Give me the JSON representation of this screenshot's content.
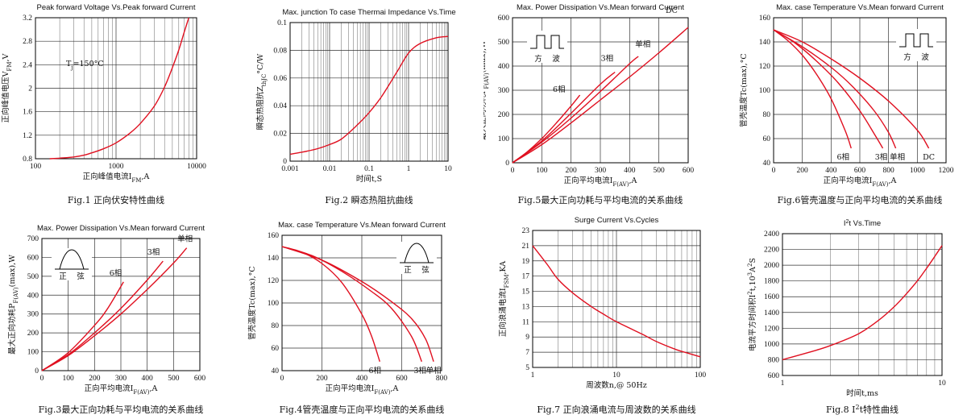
{
  "chart_data": [
    {
      "id": "fig1",
      "type": "line",
      "title": "Peak forward Voltage Vs.Peak forward Current",
      "xlabel": "正向峰值电流I",
      "xlabel_sub": "FM",
      "xlabel_end": ",A",
      "ylabel": "正向峰值电压V",
      "ylabel_sub": "FM",
      "ylabel_end": ",V",
      "caption": "Fig.1 正向伏安特性曲线",
      "annotation": "T",
      "annotation_sub": "j",
      "annotation_end": "=150°C",
      "xscale": "log",
      "xlim": [
        100,
        10000
      ],
      "ylim": [
        0.8,
        3.2
      ],
      "x_ticks": [
        100,
        1000,
        10000
      ],
      "x_tick_labels": [
        "100",
        "1000",
        "10000"
      ],
      "y_ticks": [
        0.8,
        1.2,
        1.6,
        2,
        2.4,
        2.8,
        3.2
      ],
      "y_tick_labels": [
        "0.8",
        "1.2",
        "1.6",
        "2",
        "2.4",
        "2.8",
        "3.2"
      ],
      "series": [
        {
          "x": [
            150,
            200,
            300,
            400,
            500,
            700,
            1000,
            1500,
            2000,
            3000,
            4000,
            5000,
            6000,
            7000,
            8000
          ],
          "y": [
            0.8,
            0.81,
            0.83,
            0.86,
            0.9,
            0.97,
            1.07,
            1.24,
            1.4,
            1.7,
            2.02,
            2.35,
            2.65,
            2.95,
            3.2
          ]
        }
      ]
    },
    {
      "id": "fig2",
      "type": "line",
      "title": "Max. junction To case Thermai Impedance Vs.Time",
      "xlabel": "时间t,S",
      "ylabel": "瞬态热阻抗Z",
      "ylabel_sub": "thJC",
      "ylabel_end": "°C/W",
      "caption": "Fig.2 瞬态热阻抗曲线",
      "xscale": "log",
      "xlim": [
        0.001,
        10
      ],
      "ylim": [
        0,
        0.1
      ],
      "x_ticks": [
        0.001,
        0.01,
        0.1,
        1,
        10
      ],
      "x_tick_labels": [
        "0.001",
        "0.01",
        "0.1",
        "1",
        "10"
      ],
      "y_ticks": [
        0,
        0.02,
        0.04,
        0.06,
        0.08,
        0.1
      ],
      "y_tick_labels": [
        "0",
        "0.02",
        "0.04",
        "0.06",
        "0.08",
        "0.1"
      ],
      "series": [
        {
          "x": [
            0.001,
            0.002,
            0.005,
            0.01,
            0.02,
            0.05,
            0.1,
            0.2,
            0.5,
            1,
            2,
            5,
            10
          ],
          "y": [
            0.005,
            0.0065,
            0.009,
            0.012,
            0.016,
            0.026,
            0.035,
            0.046,
            0.064,
            0.078,
            0.085,
            0.089,
            0.09
          ]
        }
      ]
    },
    {
      "id": "fig5",
      "type": "line",
      "title": "Max. Power Dissipation Vs.Mean forward Current",
      "xlabel": "正向平均电流I",
      "xlabel_sub": "F(AV)",
      "xlabel_end": ",A",
      "ylabel": "最大正向功耗P",
      "ylabel_sub": "F(AV)",
      "ylabel_end": "(max),W",
      "caption": "Fig.5最大正向功耗与平均电流的关系曲线",
      "inset": [
        "方",
        "波"
      ],
      "xlim": [
        0,
        600
      ],
      "ylim": [
        0,
        600
      ],
      "x_ticks": [
        0,
        100,
        200,
        300,
        400,
        500,
        600
      ],
      "x_tick_labels": [
        "0",
        "100",
        "200",
        "300",
        "400",
        "500",
        "600"
      ],
      "y_ticks": [
        0,
        100,
        200,
        300,
        400,
        500,
        600
      ],
      "y_tick_labels": [
        "0",
        "100",
        "200",
        "300",
        "400",
        "500",
        "600"
      ],
      "series": [
        {
          "name": "6相",
          "x": [
            0,
            50,
            100,
            150,
            200,
            230
          ],
          "y": [
            0,
            45,
            100,
            165,
            235,
            280
          ]
        },
        {
          "name": "3相",
          "x": [
            0,
            100,
            200,
            300,
            350
          ],
          "y": [
            0,
            90,
            205,
            325,
            375
          ]
        },
        {
          "name": "单相",
          "x": [
            0,
            100,
            200,
            300,
            400,
            430
          ],
          "y": [
            0,
            85,
            185,
            295,
            410,
            440
          ]
        },
        {
          "name": "DC",
          "x": [
            0,
            100,
            200,
            300,
            400,
            500,
            600
          ],
          "y": [
            0,
            75,
            165,
            260,
            355,
            455,
            560
          ]
        }
      ]
    },
    {
      "id": "fig6",
      "type": "line",
      "title": "Max. case Temperature Vs.Mean forward Current",
      "xlabel": "正向平均电流I",
      "xlabel_sub": "F(AV)",
      "xlabel_end": ",A",
      "ylabel": "管壳温度Tc(max),°C",
      "caption": "Fig.6管壳温度与正向平均电流的关系曲线",
      "inset": [
        "方",
        "波"
      ],
      "xlim": [
        0,
        1200
      ],
      "ylim": [
        40,
        160
      ],
      "x_ticks": [
        0,
        200,
        400,
        600,
        800,
        1000,
        1200
      ],
      "x_tick_labels": [
        "0",
        "200",
        "400",
        "600",
        "800",
        "1000",
        "1200"
      ],
      "y_ticks": [
        40,
        60,
        80,
        100,
        120,
        140,
        160
      ],
      "y_tick_labels": [
        "40",
        "60",
        "80",
        "100",
        "120",
        "140",
        "160"
      ],
      "series": [
        {
          "name": "6相",
          "x": [
            0,
            100,
            200,
            300,
            400,
            500,
            540
          ],
          "y": [
            150,
            141,
            129,
            113,
            93,
            66,
            52
          ]
        },
        {
          "name": "3相",
          "x": [
            0,
            150,
            300,
            450,
            600,
            700,
            760
          ],
          "y": [
            150,
            139,
            124,
            106,
            83,
            64,
            52
          ]
        },
        {
          "name": "单相",
          "x": [
            0,
            200,
            400,
            550,
            700,
            800,
            850
          ],
          "y": [
            150,
            136,
            119,
            103,
            83,
            65,
            52
          ]
        },
        {
          "name": "DC",
          "x": [
            0,
            200,
            400,
            600,
            800,
            1000,
            1080
          ],
          "y": [
            150,
            140,
            126,
            110,
            91,
            67,
            52
          ]
        }
      ]
    },
    {
      "id": "fig3",
      "type": "line",
      "title": "Max. Power Dissipation Vs.Mean forward Current",
      "xlabel": "正向平均电流I",
      "xlabel_sub": "F(AV)",
      "xlabel_end": ",A",
      "ylabel": "最大正向功耗P",
      "ylabel_sub": "F(AV)",
      "ylabel_end": "(max),W",
      "caption": "Fig.3最大正向功耗与平均电流的关系曲线",
      "inset": [
        "正",
        "弦"
      ],
      "xlim": [
        0,
        600
      ],
      "ylim": [
        0,
        700
      ],
      "x_ticks": [
        0,
        100,
        200,
        300,
        400,
        500,
        600
      ],
      "x_tick_labels": [
        "0",
        "100",
        "200",
        "300",
        "400",
        "500",
        "600"
      ],
      "y_ticks": [
        0,
        100,
        200,
        300,
        400,
        500,
        600,
        700
      ],
      "y_tick_labels": [
        "0",
        "100",
        "200",
        "300",
        "400",
        "500",
        "600",
        "700"
      ],
      "series": [
        {
          "name": "6相",
          "x": [
            0,
            100,
            200,
            250,
            310
          ],
          "y": [
            0,
            95,
            240,
            330,
            470
          ]
        },
        {
          "name": "3相",
          "x": [
            0,
            100,
            200,
            300,
            400,
            460
          ],
          "y": [
            0,
            85,
            200,
            330,
            480,
            580
          ]
        },
        {
          "name": "单相",
          "x": [
            0,
            100,
            200,
            300,
            400,
            500,
            550
          ],
          "y": [
            0,
            80,
            185,
            300,
            430,
            570,
            650
          ]
        }
      ]
    },
    {
      "id": "fig4",
      "type": "line",
      "title": "Max. case Temperature Vs.Mean forward Current",
      "xlabel": "正向平均电流I",
      "xlabel_sub": "F(AV)",
      "xlabel_end": ",A",
      "ylabel": "管壳温度Tc(max),°C",
      "caption": "Fig.4管壳温度与正向平均电流的关系曲线",
      "inset": [
        "正",
        "弦"
      ],
      "xlim": [
        0,
        800
      ],
      "ylim": [
        40,
        160
      ],
      "x_ticks": [
        0,
        200,
        400,
        600,
        800
      ],
      "x_tick_labels": [
        "0",
        "200",
        "400",
        "600",
        "800"
      ],
      "y_ticks": [
        40,
        60,
        80,
        100,
        120,
        140,
        160
      ],
      "y_tick_labels": [
        "40",
        "60",
        "80",
        "100",
        "120",
        "140",
        "160"
      ],
      "series": [
        {
          "name": "6相",
          "x": [
            0,
            100,
            200,
            300,
            400,
            450,
            490
          ],
          "y": [
            150,
            145,
            135,
            118,
            90,
            70,
            48
          ]
        },
        {
          "name": "3相",
          "x": [
            0,
            150,
            300,
            450,
            550,
            650,
            700
          ],
          "y": [
            150,
            142,
            128,
            110,
            95,
            70,
            48
          ]
        },
        {
          "name": "单相",
          "x": [
            0,
            200,
            400,
            550,
            650,
            720,
            760
          ],
          "y": [
            150,
            138,
            119,
            101,
            86,
            68,
            48
          ]
        }
      ]
    },
    {
      "id": "fig7",
      "type": "line",
      "title": "Surge Current Vs.Cycles",
      "xlabel": "周波数n,@ 50Hz",
      "ylabel": "正向浪涌电流I",
      "ylabel_sub": "FSM",
      "ylabel_end": ",KA",
      "caption": "Fig.7 正向浪涌电流与周波数的关系曲线",
      "xscale": "log",
      "xlim": [
        1,
        100
      ],
      "ylim": [
        5,
        23
      ],
      "x_ticks": [
        1,
        10,
        100
      ],
      "x_tick_labels": [
        "1",
        "10",
        "100"
      ],
      "y_ticks": [
        5,
        7,
        9,
        11,
        13,
        15,
        17,
        19,
        21,
        23
      ],
      "y_tick_labels": [
        "5",
        "7",
        "9",
        "11",
        "13",
        "15",
        "17",
        "19",
        "21",
        "23"
      ],
      "series": [
        {
          "x": [
            1,
            1.5,
            2,
            3,
            5,
            7,
            10,
            20,
            30,
            50,
            70,
            100
          ],
          "y": [
            21,
            18.5,
            16.6,
            14.8,
            13,
            12,
            11,
            9.4,
            8.4,
            7.4,
            6.9,
            6.4
          ]
        }
      ]
    },
    {
      "id": "fig8",
      "type": "line",
      "title": "I",
      "title_sup": "2",
      "title_end": "t  Vs.Time",
      "xlabel": "时间t,ms",
      "ylabel": "电流平方时间积I",
      "ylabel_sup": "2",
      "ylabel_mid": "t,10",
      "ylabel_sup2": "3",
      "ylabel_end": "A",
      "ylabel_sup3": "2",
      "ylabel_tail": "S",
      "caption": "Fig.8 I",
      "caption_sup": "2",
      "caption_end": "t特性曲线",
      "xscale": "log",
      "xlim": [
        1,
        10
      ],
      "ylim": [
        600,
        2400
      ],
      "x_ticks": [
        1,
        10
      ],
      "x_tick_labels": [
        "1",
        "10"
      ],
      "y_ticks": [
        600,
        800,
        1000,
        1200,
        1400,
        1600,
        1800,
        2000,
        2200,
        2400
      ],
      "y_tick_labels": [
        "600",
        "800",
        "1000",
        "1200",
        "1400",
        "1600",
        "1800",
        "2000",
        "2200",
        "2400"
      ],
      "series": [
        {
          "x": [
            1,
            1.5,
            2,
            3,
            4,
            5,
            6,
            7,
            8,
            9,
            10
          ],
          "y": [
            800,
            900,
            980,
            1130,
            1300,
            1470,
            1640,
            1800,
            1960,
            2110,
            2250
          ]
        }
      ]
    }
  ]
}
